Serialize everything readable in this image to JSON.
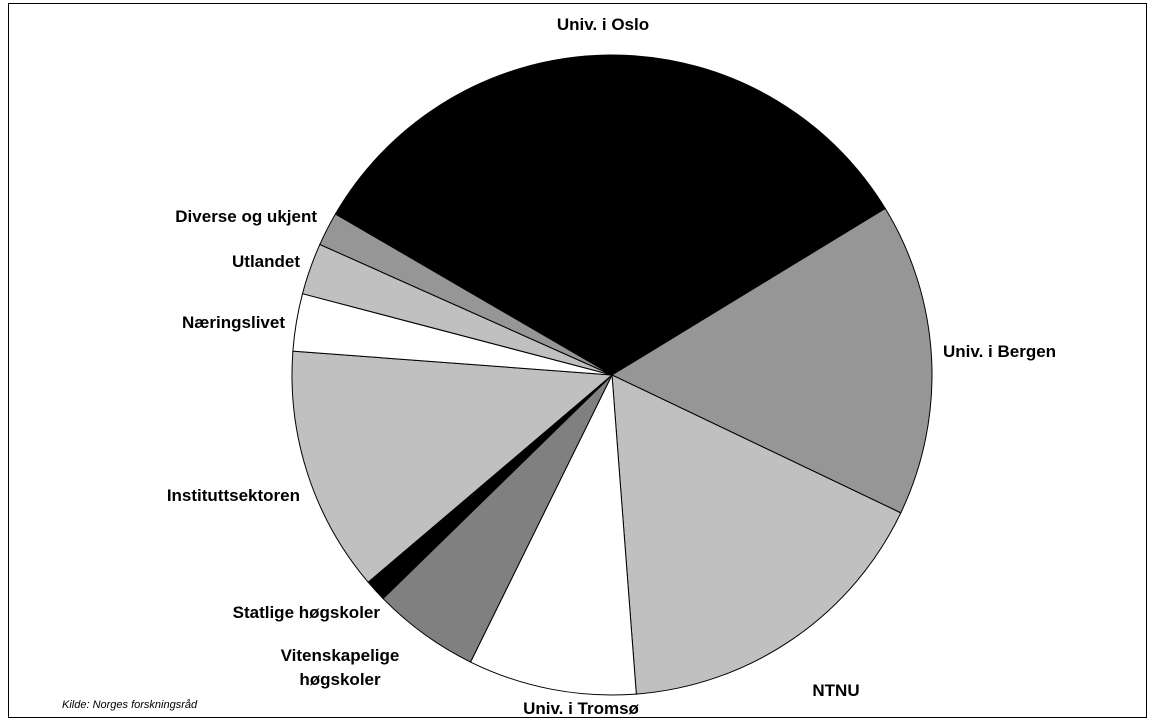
{
  "chart_data": {
    "type": "pie",
    "categories": [
      "Univ. i Oslo",
      "Univ. i Bergen",
      "NTNU",
      "Univ. i Tromsø",
      "Vitenskapelige høgskoler",
      "Statlige høgskoler",
      "Instituttsektoren",
      "Næringslivet",
      "Utlandet",
      "Diverse og ukjent"
    ],
    "values": [
      32.9,
      15.8,
      16.7,
      8.5,
      5.4,
      1.1,
      12.4,
      2.9,
      2.6,
      1.7
    ],
    "colors": [
      "#000000",
      "#969696",
      "#c0c0c0",
      "#ffffff",
      "#808080",
      "#000000",
      "#c0c0c0",
      "#ffffff",
      "#c0c0c0",
      "#969696"
    ],
    "source": "Kilde: Norges forskningsråd"
  }
}
